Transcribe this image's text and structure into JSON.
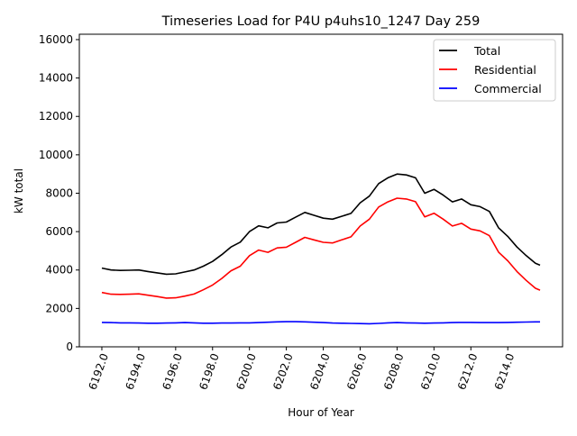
{
  "chart_data": {
    "type": "line",
    "title": "Timeseries Load for P4U p4uhs10_1247  Day 259",
    "xlabel": "Hour of Year",
    "ylabel": "kW total",
    "xlim": [
      6190.78,
      6216.97
    ],
    "ylim": [
      0,
      16280
    ],
    "xticks": [
      6192,
      6194,
      6196,
      6198,
      6200,
      6202,
      6204,
      6206,
      6208,
      6210,
      6212,
      6214
    ],
    "xtick_labels": [
      "6192.0",
      "6194.0",
      "6196.0",
      "6198.0",
      "6200.0",
      "6202.0",
      "6204.0",
      "6206.0",
      "6208.0",
      "6210.0",
      "6212.0",
      "6214.0"
    ],
    "yticks": [
      0,
      2000,
      4000,
      6000,
      8000,
      10000,
      12000,
      14000,
      16000
    ],
    "ytick_labels": [
      "0",
      "2000",
      "4000",
      "6000",
      "8000",
      "10000",
      "12000",
      "14000",
      "16000"
    ],
    "grid": false,
    "legend_position": "top-right",
    "x": [
      6192,
      6192.5,
      6193,
      6193.5,
      6194,
      6194.5,
      6195,
      6195.5,
      6196,
      6196.5,
      6197,
      6197.5,
      6198,
      6198.5,
      6199,
      6199.5,
      6200,
      6200.5,
      6201,
      6201.5,
      6202,
      6202.5,
      6203,
      6203.5,
      6204,
      6204.5,
      6205,
      6205.5,
      6206,
      6206.5,
      6207,
      6207.5,
      6208,
      6208.5,
      6209,
      6209.5,
      6210,
      6210.5,
      6211,
      6211.5,
      6212,
      6212.5,
      6213,
      6213.5,
      6214,
      6214.5,
      6215,
      6215.5,
      6215.75
    ],
    "series": [
      {
        "name": "Total",
        "color": "#000000",
        "values": [
          4100,
          4000,
          3980,
          3990,
          4000,
          3920,
          3850,
          3780,
          3800,
          3900,
          4000,
          4200,
          4450,
          4800,
          5200,
          5450,
          6000,
          6300,
          6200,
          6450,
          6500,
          6750,
          7000,
          6850,
          6700,
          6650,
          6800,
          6950,
          7500,
          7850,
          8500,
          8800,
          9000,
          8950,
          8800,
          8000,
          8200,
          7900,
          7550,
          7700,
          7400,
          7300,
          7050,
          6200,
          5750,
          5200,
          4750,
          4350,
          4250
        ]
      },
      {
        "name": "Residential",
        "color": "#ff0000",
        "values": [
          2830,
          2740,
          2730,
          2740,
          2760,
          2690,
          2620,
          2540,
          2550,
          2640,
          2750,
          2970,
          3220,
          3560,
          3960,
          4200,
          4750,
          5040,
          4920,
          5150,
          5190,
          5440,
          5700,
          5570,
          5440,
          5410,
          5570,
          5730,
          6290,
          6650,
          7280,
          7550,
          7740,
          7700,
          7560,
          6770,
          6960,
          6650,
          6290,
          6430,
          6130,
          6040,
          5790,
          4930,
          4480,
          3920,
          3460,
          3050,
          2950
        ]
      },
      {
        "name": "Commercial",
        "color": "#0000ff",
        "values": [
          1270,
          1260,
          1250,
          1250,
          1240,
          1230,
          1230,
          1240,
          1250,
          1260,
          1250,
          1230,
          1230,
          1240,
          1240,
          1250,
          1250,
          1260,
          1280,
          1300,
          1310,
          1310,
          1300,
          1280,
          1260,
          1240,
          1230,
          1220,
          1210,
          1200,
          1220,
          1250,
          1260,
          1250,
          1240,
          1230,
          1240,
          1250,
          1260,
          1270,
          1270,
          1260,
          1260,
          1260,
          1270,
          1280,
          1290,
          1300,
          1300
        ]
      }
    ]
  }
}
